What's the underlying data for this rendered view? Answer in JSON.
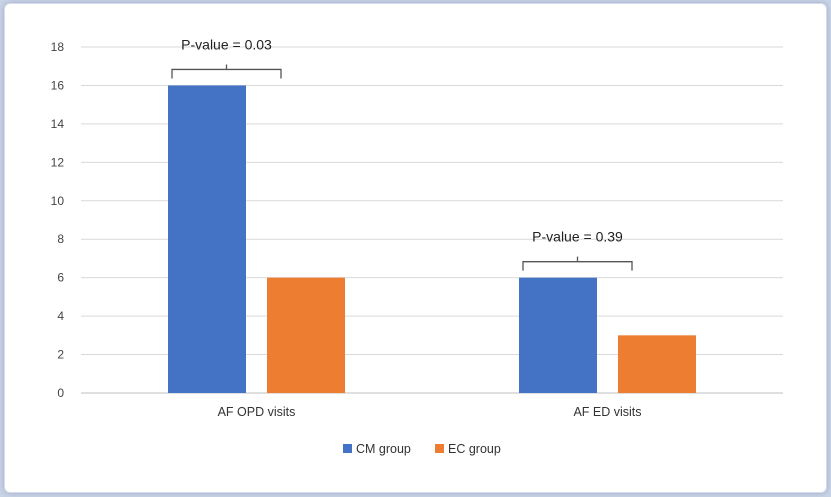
{
  "chart_data": {
    "type": "bar",
    "categories": [
      "AF OPD visits",
      "AF ED visits"
    ],
    "series": [
      {
        "name": "CM group",
        "values": [
          16,
          6
        ],
        "color": "#4472c4"
      },
      {
        "name": "EC group",
        "values": [
          6,
          3
        ],
        "color": "#ed7d31"
      }
    ],
    "ylim": [
      0,
      18
    ],
    "yticks": [
      0,
      2,
      4,
      6,
      8,
      10,
      12,
      14,
      16,
      18
    ],
    "grid": true,
    "legend_position": "bottom",
    "annotations": [
      {
        "category": "AF OPD visits",
        "text": "P-value = 0.03"
      },
      {
        "category": "AF ED visits",
        "text": "P-value = 0.39"
      }
    ]
  }
}
